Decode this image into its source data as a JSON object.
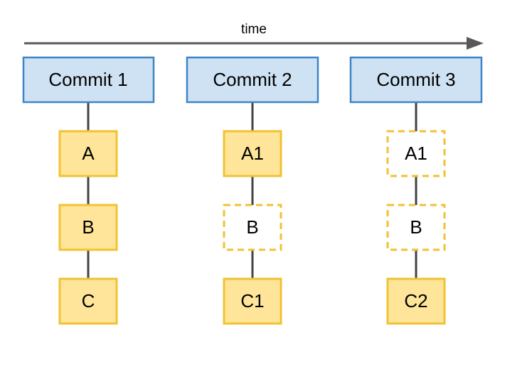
{
  "time_label": "time",
  "commits": [
    {
      "label": "Commit 1",
      "files": [
        {
          "label": "A",
          "style": "solid"
        },
        {
          "label": "B",
          "style": "solid"
        },
        {
          "label": "C",
          "style": "solid"
        }
      ]
    },
    {
      "label": "Commit 2",
      "files": [
        {
          "label": "A1",
          "style": "solid"
        },
        {
          "label": "B",
          "style": "dashed"
        },
        {
          "label": "C1",
          "style": "solid"
        }
      ]
    },
    {
      "label": "Commit 3",
      "files": [
        {
          "label": "A1",
          "style": "dashed"
        },
        {
          "label": "B",
          "style": "dashed"
        },
        {
          "label": "C2",
          "style": "solid"
        }
      ]
    }
  ],
  "colors": {
    "commit_fill": "#cfe2f3",
    "commit_border": "#3d85c6",
    "file_fill": "#ffe599",
    "file_border": "#f1c232",
    "connector": "#434343"
  }
}
